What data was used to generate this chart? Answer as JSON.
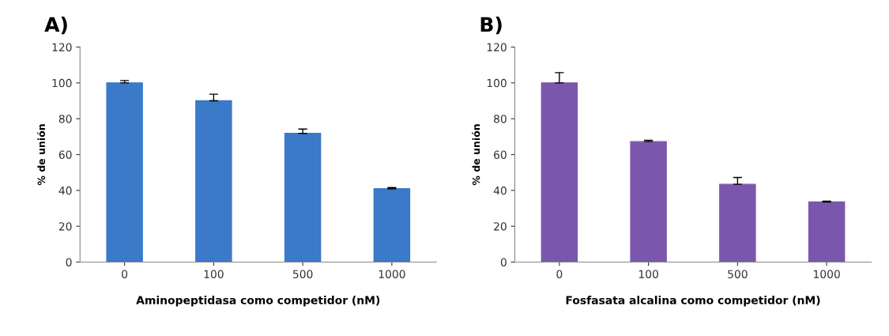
{
  "chart_data": [
    {
      "type": "bar",
      "title": "A)",
      "xlabel": "Aminopeptidasa como competidor (nM)",
      "ylabel": "% de unión",
      "categories": [
        "0",
        "100",
        "500",
        "1000"
      ],
      "values": [
        100,
        90,
        71.8,
        40.9
      ],
      "errors": [
        [
          100,
          101.3
        ],
        [
          90,
          93.7
        ],
        [
          71.8,
          74.2
        ],
        [
          40.9,
          41.6
        ]
      ],
      "color": "#3b79c9",
      "ylim": [
        0,
        120
      ],
      "yticks": [
        0,
        20,
        40,
        60,
        80,
        100,
        120
      ],
      "grid": false,
      "legend": false
    },
    {
      "type": "bar",
      "title": "B)",
      "xlabel": "Fosfasata alcalina como competidor (nM)",
      "ylabel": "% de unión",
      "categories": [
        "0",
        "100",
        "500",
        "1000"
      ],
      "values": [
        100,
        67.2,
        43.4,
        33.5
      ],
      "errors": [
        [
          100,
          105.7
        ],
        [
          67.2,
          68
        ],
        [
          43.4,
          47.2
        ],
        [
          33.5,
          34
        ]
      ],
      "color": "#7a57ac",
      "ylim": [
        0,
        120
      ],
      "yticks": [
        0,
        20,
        40,
        60,
        80,
        100,
        120
      ],
      "grid": false,
      "legend": false
    }
  ]
}
